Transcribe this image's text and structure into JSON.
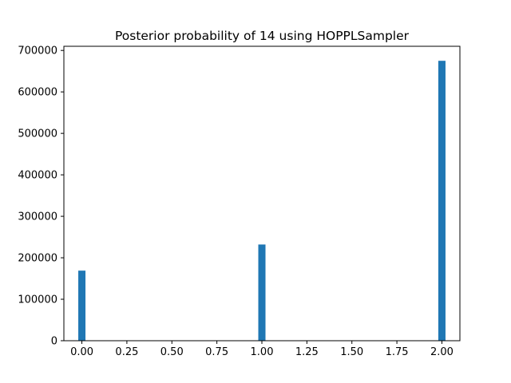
{
  "chart_data": {
    "type": "bar",
    "title": "Posterior probability of 14 using HOPPLSampler",
    "xlabel": "",
    "ylabel": "",
    "bars": [
      {
        "x": 0.0,
        "value": 169000
      },
      {
        "x": 1.0,
        "value": 232000
      },
      {
        "x": 2.0,
        "value": 675000
      }
    ],
    "bar_width": 0.04,
    "xlim": [
      -0.1,
      2.1
    ],
    "ylim": [
      0,
      710000
    ],
    "xticks": [
      0.0,
      0.25,
      0.5,
      0.75,
      1.0,
      1.25,
      1.5,
      1.75,
      2.0
    ],
    "xtick_labels": [
      "0.00",
      "0.25",
      "0.50",
      "0.75",
      "1.00",
      "1.25",
      "1.50",
      "1.75",
      "2.00"
    ],
    "yticks": [
      0,
      100000,
      200000,
      300000,
      400000,
      500000,
      600000,
      700000
    ],
    "ytick_labels": [
      "0",
      "100000",
      "200000",
      "300000",
      "400000",
      "500000",
      "600000",
      "700000"
    ],
    "grid": false,
    "bar_color": "#1f77b4"
  }
}
